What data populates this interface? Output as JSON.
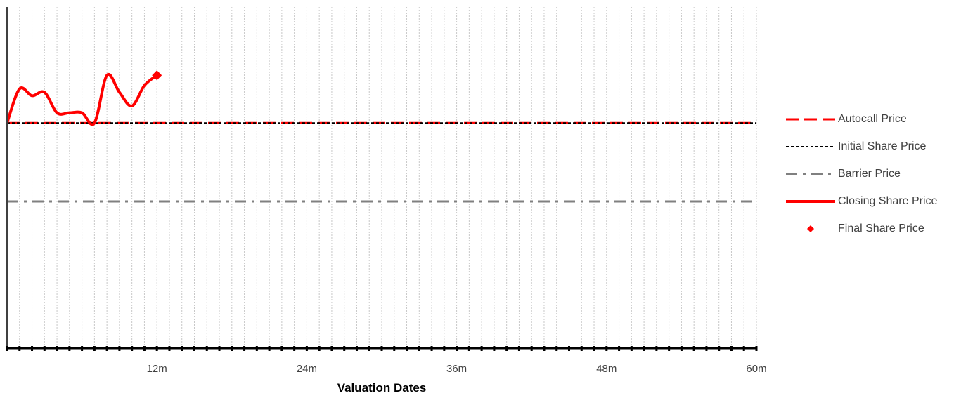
{
  "chart_data": {
    "type": "line",
    "title": "",
    "xlabel": "Valuation Dates",
    "ylabel": "",
    "x_ticks": [
      "12m",
      "24m",
      "36m",
      "48m",
      "60m"
    ],
    "xlim": [
      0,
      60
    ],
    "ylim": [
      0,
      100
    ],
    "grid": "vertical dotted monthly",
    "legend_position": "right",
    "series": [
      {
        "name": "Autocall Price",
        "style": "dashed",
        "color": "#ff0000",
        "x": [
          0,
          60
        ],
        "y": [
          66,
          66
        ]
      },
      {
        "name": "Initial Share Price",
        "style": "dotted",
        "color": "#000000",
        "x": [
          0,
          60
        ],
        "y": [
          66,
          66
        ]
      },
      {
        "name": "Barrier Price",
        "style": "dash-dot",
        "color": "#808080",
        "x": [
          0,
          60
        ],
        "y": [
          43,
          43
        ]
      },
      {
        "name": "Closing Share Price",
        "style": "solid",
        "color": "#ff0000",
        "x": [
          0,
          1,
          2,
          3,
          4,
          5,
          6,
          7,
          8,
          9,
          10,
          11,
          12
        ],
        "y": [
          66,
          76,
          74,
          75,
          69,
          69,
          69,
          66,
          80,
          75,
          71,
          77,
          80
        ]
      },
      {
        "name": "Final Share Price",
        "style": "diamond-marker",
        "color": "#ff0000",
        "x": [
          12
        ],
        "y": [
          80
        ]
      }
    ]
  }
}
